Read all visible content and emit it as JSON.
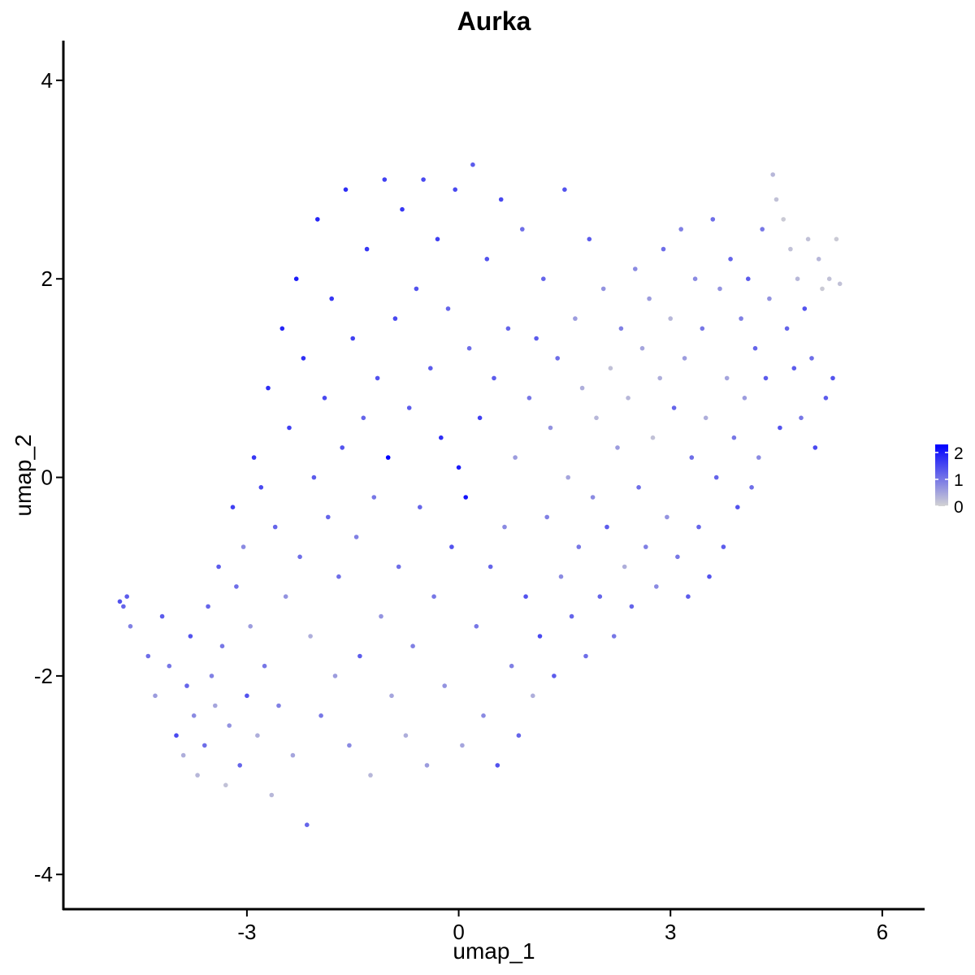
{
  "chart_data": {
    "type": "scatter",
    "title": "Aurka",
    "xlabel": "umap_1",
    "ylabel": "umap_2",
    "xlim": [
      -5.6,
      6.6
    ],
    "ylim": [
      -4.35,
      4.4
    ],
    "x_ticks": [
      -3,
      0,
      3,
      6
    ],
    "x_tick_labels": [
      "-3",
      "0",
      "3",
      "6"
    ],
    "y_ticks": [
      -4,
      -2,
      0,
      2,
      4
    ],
    "y_tick_labels": [
      "-4",
      "-2",
      "0",
      "2",
      "4"
    ],
    "grid": false,
    "legend": {
      "placement": "right",
      "type": "colorbar",
      "min": 0,
      "max": 2.3,
      "ticks": [
        0,
        1,
        2
      ],
      "tick_labels": [
        "0",
        "1",
        "2"
      ],
      "low_color": "#d3d3d3",
      "high_color": "#0000ff"
    },
    "point_color_low": "#d3d3d3",
    "point_color_high": "#0000ff",
    "points": [
      [
        -4.8,
        -1.25,
        1.4
      ],
      [
        -4.75,
        -1.3,
        1.2
      ],
      [
        -4.7,
        -1.2,
        1.3
      ],
      [
        -4.65,
        -1.5,
        0.9
      ],
      [
        -4.4,
        -1.8,
        1.1
      ],
      [
        -4.3,
        -2.2,
        0.6
      ],
      [
        -4.2,
        -1.4,
        1.3
      ],
      [
        -4.1,
        -1.9,
        1.0
      ],
      [
        -4.0,
        -2.6,
        1.5
      ],
      [
        -3.9,
        -2.8,
        0.4
      ],
      [
        -3.85,
        -2.1,
        1.2
      ],
      [
        -3.8,
        -1.6,
        1.4
      ],
      [
        -3.75,
        -2.4,
        0.8
      ],
      [
        -3.7,
        -3.0,
        0.3
      ],
      [
        -3.6,
        -2.7,
        1.1
      ],
      [
        -3.55,
        -1.3,
        1.2
      ],
      [
        -3.5,
        -2.0,
        0.9
      ],
      [
        -3.45,
        -2.3,
        0.5
      ],
      [
        -3.4,
        -0.9,
        1.3
      ],
      [
        -3.35,
        -1.7,
        1.0
      ],
      [
        -3.3,
        -3.1,
        0.2
      ],
      [
        -3.25,
        -2.5,
        0.7
      ],
      [
        -3.2,
        -0.3,
        1.6
      ],
      [
        -3.15,
        -1.1,
        1.1
      ],
      [
        -3.1,
        -2.9,
        1.2
      ],
      [
        -3.05,
        -0.7,
        0.8
      ],
      [
        -3.0,
        -2.2,
        1.4
      ],
      [
        -2.95,
        -1.5,
        0.6
      ],
      [
        -2.9,
        0.2,
        1.7
      ],
      [
        -2.85,
        -2.6,
        0.4
      ],
      [
        -2.8,
        -0.1,
        1.5
      ],
      [
        -2.75,
        -1.9,
        1.0
      ],
      [
        -2.7,
        0.9,
        1.8
      ],
      [
        -2.65,
        -3.2,
        0.3
      ],
      [
        -2.6,
        -0.5,
        1.2
      ],
      [
        -2.55,
        -2.3,
        0.9
      ],
      [
        -2.5,
        1.5,
        1.9
      ],
      [
        -2.45,
        -1.2,
        0.7
      ],
      [
        -2.4,
        0.5,
        1.6
      ],
      [
        -2.35,
        -2.8,
        0.5
      ],
      [
        -2.3,
        2.0,
        2.0
      ],
      [
        -2.25,
        -0.8,
        1.1
      ],
      [
        -2.2,
        1.2,
        1.8
      ],
      [
        -2.15,
        -3.5,
        1.2
      ],
      [
        -2.1,
        -1.6,
        0.4
      ],
      [
        -2.05,
        0.0,
        1.3
      ],
      [
        -2.0,
        2.6,
        1.9
      ],
      [
        -1.95,
        -2.4,
        1.0
      ],
      [
        -1.9,
        0.8,
        1.5
      ],
      [
        -1.85,
        -0.4,
        1.2
      ],
      [
        -1.8,
        1.8,
        1.7
      ],
      [
        -1.75,
        -2.0,
        0.6
      ],
      [
        -1.7,
        -1.0,
        1.1
      ],
      [
        -1.65,
        0.3,
        1.4
      ],
      [
        -1.6,
        2.9,
        1.8
      ],
      [
        -1.55,
        -2.7,
        0.8
      ],
      [
        -1.5,
        1.4,
        1.6
      ],
      [
        -1.45,
        -0.6,
        0.9
      ],
      [
        -1.4,
        -1.8,
        1.3
      ],
      [
        -1.35,
        0.6,
        1.2
      ],
      [
        -1.3,
        2.3,
        1.7
      ],
      [
        -1.25,
        -3.0,
        0.3
      ],
      [
        -1.2,
        -0.2,
        1.0
      ],
      [
        -1.15,
        1.0,
        1.4
      ],
      [
        -1.1,
        -1.4,
        0.7
      ],
      [
        -1.05,
        3.0,
        1.6
      ],
      [
        -1.0,
        0.2,
        2.3
      ],
      [
        -0.95,
        -2.2,
        0.5
      ],
      [
        -0.9,
        1.6,
        1.5
      ],
      [
        -0.85,
        -0.9,
        1.1
      ],
      [
        -0.8,
        2.7,
        1.7
      ],
      [
        -0.75,
        -2.6,
        0.4
      ],
      [
        -0.7,
        0.7,
        1.3
      ],
      [
        -0.65,
        -1.7,
        0.9
      ],
      [
        -0.6,
        1.9,
        1.4
      ],
      [
        -0.55,
        -0.3,
        1.2
      ],
      [
        -0.5,
        3.0,
        1.5
      ],
      [
        -0.45,
        -2.9,
        0.6
      ],
      [
        -0.4,
        1.1,
        1.3
      ],
      [
        -0.35,
        -1.2,
        1.0
      ],
      [
        -0.3,
        2.4,
        1.6
      ],
      [
        -0.25,
        0.4,
        1.8
      ],
      [
        -0.2,
        -2.1,
        0.7
      ],
      [
        -0.15,
        1.7,
        1.2
      ],
      [
        -0.1,
        -0.7,
        1.4
      ],
      [
        -0.05,
        2.9,
        1.5
      ],
      [
        0.0,
        0.1,
        2.0
      ],
      [
        0.05,
        -2.7,
        0.5
      ],
      [
        0.1,
        -0.2,
        2.1
      ],
      [
        0.15,
        1.3,
        1.1
      ],
      [
        0.2,
        3.15,
        1.3
      ],
      [
        0.25,
        -1.5,
        1.0
      ],
      [
        0.3,
        0.6,
        1.6
      ],
      [
        0.35,
        -2.4,
        0.8
      ],
      [
        0.4,
        2.2,
        1.4
      ],
      [
        0.45,
        -0.9,
        1.2
      ],
      [
        0.5,
        1.0,
        1.3
      ],
      [
        0.55,
        -2.9,
        1.4
      ],
      [
        0.6,
        2.8,
        1.5
      ],
      [
        0.65,
        -0.5,
        0.8
      ],
      [
        0.7,
        1.5,
        1.2
      ],
      [
        0.75,
        -1.9,
        0.9
      ],
      [
        0.8,
        0.2,
        0.6
      ],
      [
        0.85,
        -2.6,
        1.2
      ],
      [
        0.9,
        2.5,
        1.1
      ],
      [
        0.95,
        -1.2,
        1.4
      ],
      [
        1.0,
        0.8,
        1.0
      ],
      [
        1.05,
        -2.2,
        0.4
      ],
      [
        1.1,
        1.4,
        1.3
      ],
      [
        1.15,
        -1.6,
        1.5
      ],
      [
        1.2,
        2.0,
        1.2
      ],
      [
        1.25,
        -0.4,
        0.9
      ],
      [
        1.3,
        0.5,
        0.7
      ],
      [
        1.35,
        -2.0,
        1.3
      ],
      [
        1.4,
        1.2,
        1.1
      ],
      [
        1.45,
        -1.0,
        0.8
      ],
      [
        1.5,
        2.9,
        1.4
      ],
      [
        1.55,
        0.0,
        0.5
      ],
      [
        1.6,
        -1.4,
        1.2
      ],
      [
        1.65,
        1.6,
        0.6
      ],
      [
        1.7,
        -0.7,
        1.0
      ],
      [
        1.75,
        0.9,
        0.4
      ],
      [
        1.8,
        -1.8,
        1.1
      ],
      [
        1.85,
        2.4,
        1.3
      ],
      [
        1.9,
        -0.2,
        0.8
      ],
      [
        1.95,
        0.6,
        0.3
      ],
      [
        2.0,
        -1.2,
        1.2
      ],
      [
        2.05,
        1.9,
        0.7
      ],
      [
        2.1,
        -0.5,
        1.3
      ],
      [
        2.15,
        1.1,
        0.2
      ],
      [
        2.2,
        -1.6,
        1.0
      ],
      [
        2.25,
        0.3,
        0.6
      ],
      [
        2.3,
        1.5,
        0.9
      ],
      [
        2.35,
        -0.9,
        0.4
      ],
      [
        2.4,
        0.8,
        0.3
      ],
      [
        2.45,
        -1.3,
        1.2
      ],
      [
        2.5,
        2.1,
        0.8
      ],
      [
        2.55,
        -0.1,
        1.1
      ],
      [
        2.6,
        1.3,
        0.5
      ],
      [
        2.65,
        -0.7,
        0.9
      ],
      [
        2.7,
        1.8,
        0.6
      ],
      [
        2.75,
        0.4,
        0.2
      ],
      [
        2.8,
        -1.1,
        0.8
      ],
      [
        2.85,
        1.0,
        0.4
      ],
      [
        2.9,
        2.3,
        1.1
      ],
      [
        2.95,
        -0.4,
        0.7
      ],
      [
        3.0,
        1.6,
        0.3
      ],
      [
        3.05,
        0.7,
        1.2
      ],
      [
        3.1,
        -0.8,
        1.0
      ],
      [
        3.15,
        2.5,
        0.9
      ],
      [
        3.2,
        1.2,
        0.6
      ],
      [
        3.25,
        -1.2,
        1.3
      ],
      [
        3.3,
        0.2,
        1.1
      ],
      [
        3.35,
        2.0,
        0.8
      ],
      [
        3.4,
        -0.5,
        1.2
      ],
      [
        3.45,
        1.5,
        1.0
      ],
      [
        3.5,
        0.6,
        0.4
      ],
      [
        3.55,
        -1.0,
        1.4
      ],
      [
        3.6,
        2.6,
        1.1
      ],
      [
        3.65,
        0.0,
        1.2
      ],
      [
        3.7,
        1.9,
        0.7
      ],
      [
        3.75,
        -0.7,
        1.3
      ],
      [
        3.8,
        1.0,
        0.5
      ],
      [
        3.85,
        2.2,
        1.2
      ],
      [
        3.9,
        0.4,
        1.0
      ],
      [
        3.95,
        -0.3,
        1.4
      ],
      [
        4.0,
        1.6,
        0.9
      ],
      [
        4.05,
        0.8,
        0.6
      ],
      [
        4.1,
        2.0,
        1.3
      ],
      [
        4.15,
        -0.1,
        1.1
      ],
      [
        4.2,
        1.3,
        1.2
      ],
      [
        4.25,
        0.2,
        0.8
      ],
      [
        4.3,
        2.5,
        1.0
      ],
      [
        4.35,
        1.0,
        1.3
      ],
      [
        4.4,
        1.8,
        0.7
      ],
      [
        4.45,
        3.05,
        0.3
      ],
      [
        4.5,
        2.8,
        0.2
      ],
      [
        4.55,
        0.5,
        1.4
      ],
      [
        4.6,
        2.6,
        0.1
      ],
      [
        4.65,
        1.5,
        1.2
      ],
      [
        4.7,
        2.3,
        0.2
      ],
      [
        4.75,
        1.1,
        1.3
      ],
      [
        4.8,
        2.0,
        0.3
      ],
      [
        4.85,
        0.6,
        1.0
      ],
      [
        4.9,
        1.7,
        1.4
      ],
      [
        4.95,
        2.4,
        0.2
      ],
      [
        5.0,
        1.2,
        1.1
      ],
      [
        5.05,
        0.3,
        1.5
      ],
      [
        5.1,
        2.2,
        0.3
      ],
      [
        5.15,
        1.9,
        0.1
      ],
      [
        5.2,
        0.8,
        1.3
      ],
      [
        5.25,
        2.0,
        0.2
      ],
      [
        5.3,
        1.0,
        1.4
      ],
      [
        5.35,
        2.4,
        0.1
      ],
      [
        5.4,
        1.95,
        0.2
      ]
    ]
  }
}
